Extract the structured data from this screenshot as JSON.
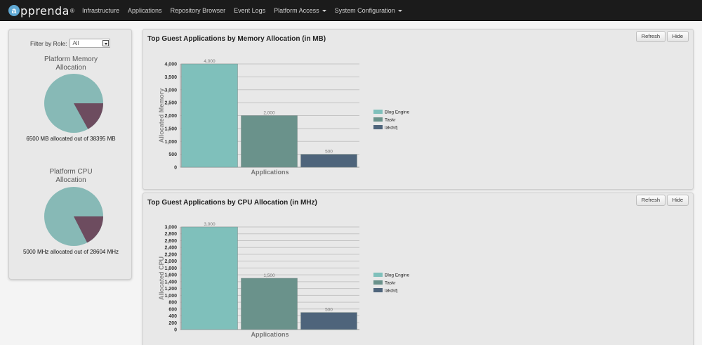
{
  "brand": {
    "name": "pprenda",
    "letter": "a",
    "mark": "®"
  },
  "nav": [
    {
      "label": "Infrastructure",
      "dropdown": false
    },
    {
      "label": "Applications",
      "dropdown": false
    },
    {
      "label": "Repository Browser",
      "dropdown": false
    },
    {
      "label": "Event Logs",
      "dropdown": false
    },
    {
      "label": "Platform Access",
      "dropdown": true
    },
    {
      "label": "System Configuration",
      "dropdown": true
    }
  ],
  "sidebar": {
    "filter_label": "Filter by Role:",
    "filter_value": "All",
    "memory": {
      "title_line1": "Platform Memory",
      "title_line2": "Allocation",
      "caption": "6500 MB allocated out of 38395 MB",
      "allocated": 6500,
      "total": 38395
    },
    "cpu": {
      "title_line1": "Platform CPU",
      "title_line2": "Allocation",
      "caption": "5000 MHz allocated out of 28604 MHz",
      "allocated": 5000,
      "total": 28604
    }
  },
  "buttons": {
    "refresh": "Refresh",
    "hide": "Hide"
  },
  "colors": {
    "series": [
      "#7fc0bb",
      "#6a928b",
      "#4e647b"
    ],
    "pie_free": "#87b9b6",
    "pie_used": "#6d4c5f"
  },
  "chart_data": [
    {
      "type": "bar",
      "title": "Top Guest Applications by Memory Allocation (in MB)",
      "xlabel": "Applications",
      "ylabel": "Allocated Memory",
      "categories": [
        "Blog Engine",
        "Taskr",
        "lakdsfj"
      ],
      "values": [
        4000,
        2000,
        500
      ],
      "data_labels": [
        "4,000",
        "2,000",
        "500"
      ],
      "ylim": [
        0,
        4000
      ],
      "yticks": [
        0,
        500,
        1000,
        1500,
        2000,
        2500,
        3000,
        3500,
        4000
      ],
      "ytick_labels": [
        "0",
        "500",
        "1,000",
        "1,500",
        "2,000",
        "2,500",
        "3,000",
        "3,500",
        "4,000"
      ],
      "legend": [
        "Blog Engine",
        "Taskr",
        "lakdsfj"
      ],
      "legend_position": "right",
      "grid": true
    },
    {
      "type": "bar",
      "title": "Top Guest Applications by CPU Allocation (in MHz)",
      "xlabel": "Applications",
      "ylabel": "Allocated CPU",
      "categories": [
        "Blog Engine",
        "Taskr",
        "lakdsfj"
      ],
      "values": [
        3000,
        1500,
        500
      ],
      "data_labels": [
        "3,000",
        "1,500",
        "500"
      ],
      "ylim": [
        0,
        3000
      ],
      "yticks": [
        0,
        200,
        400,
        600,
        800,
        1000,
        1200,
        1400,
        1600,
        1800,
        2000,
        2200,
        2400,
        2600,
        2800,
        3000
      ],
      "ytick_labels": [
        "0",
        "200",
        "400",
        "600",
        "800",
        "1,000",
        "1,200",
        "1,400",
        "1,600",
        "1,800",
        "2,000",
        "2,200",
        "2,400",
        "2,600",
        "2,800",
        "3,000"
      ],
      "legend": [
        "Blog Engine",
        "Taskr",
        "lakdsfj"
      ],
      "legend_position": "right",
      "grid": true
    }
  ]
}
